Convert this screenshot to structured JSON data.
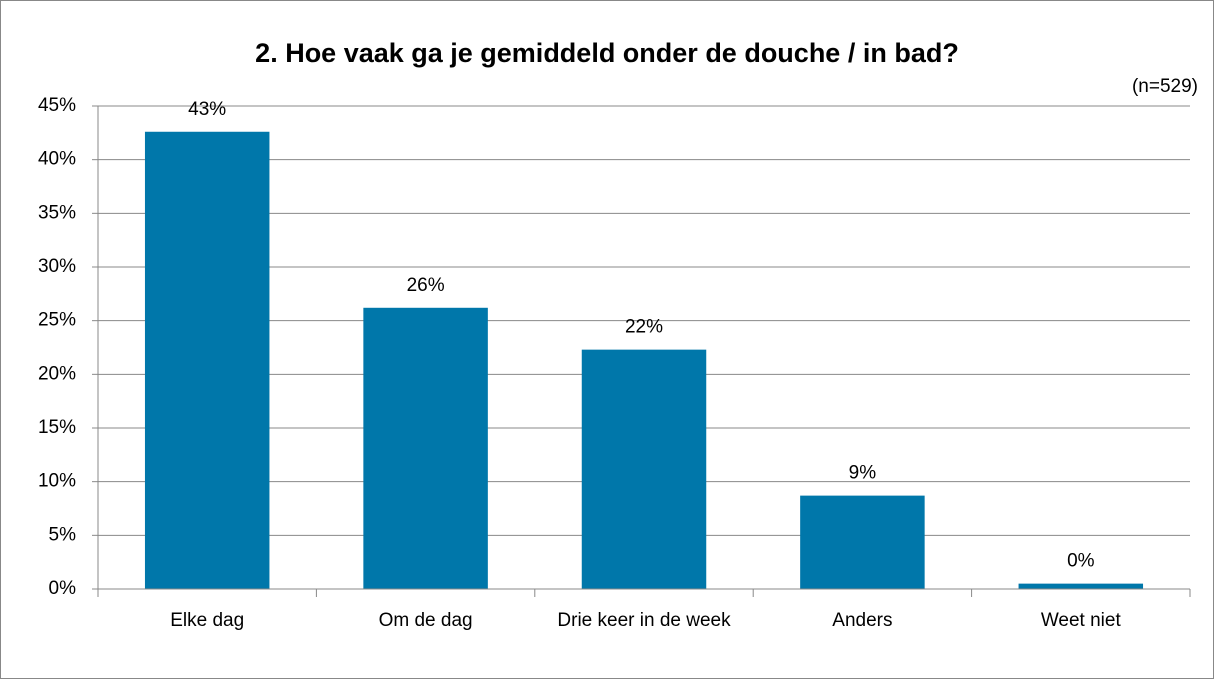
{
  "chart_data": {
    "type": "bar",
    "title": "2. Hoe vaak ga je gemiddeld onder de douche / in bad?",
    "subtitle": "(n=529)",
    "categories": [
      "Elke dag",
      "Om de dag",
      "Drie keer in de week",
      "Anders",
      "Weet niet"
    ],
    "values": [
      42.6,
      26.2,
      22.3,
      8.7,
      0.5
    ],
    "value_labels": [
      "43%",
      "26%",
      "22%",
      "9%",
      "0%"
    ],
    "color": "#0077aa",
    "ylim": [
      0,
      45
    ],
    "yticks": [
      {
        "value": 0,
        "label": "0%"
      },
      {
        "value": 5,
        "label": "5%"
      },
      {
        "value": 10,
        "label": "10%"
      },
      {
        "value": 15,
        "label": "15%"
      },
      {
        "value": 20,
        "label": "20%"
      },
      {
        "value": 25,
        "label": "25%"
      },
      {
        "value": 30,
        "label": "30%"
      },
      {
        "value": 35,
        "label": "35%"
      },
      {
        "value": 40,
        "label": "40%"
      },
      {
        "value": 45,
        "label": "45%"
      }
    ],
    "grid": true
  }
}
